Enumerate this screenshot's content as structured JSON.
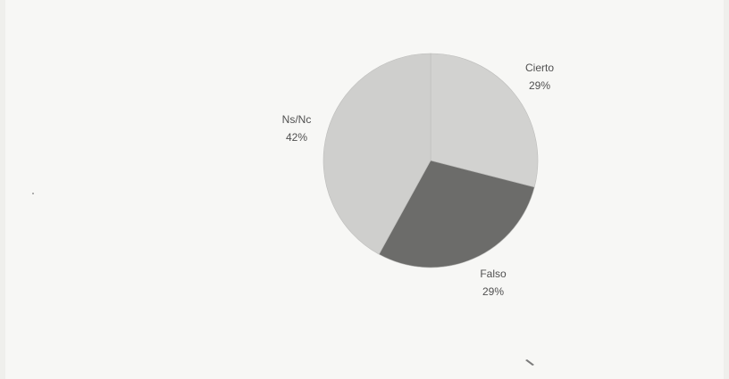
{
  "chart_data": {
    "type": "pie",
    "title": "",
    "slices": [
      {
        "label": "Cierto",
        "value": 29,
        "display": "29%",
        "color": "#d2d2d0"
      },
      {
        "label": "Falso",
        "value": 29,
        "display": "29%",
        "color": "#6c6c6a"
      },
      {
        "label": "Ns/Nc",
        "value": 42,
        "display": "42%",
        "color": "#cfcfcd"
      }
    ],
    "legend": "none"
  }
}
